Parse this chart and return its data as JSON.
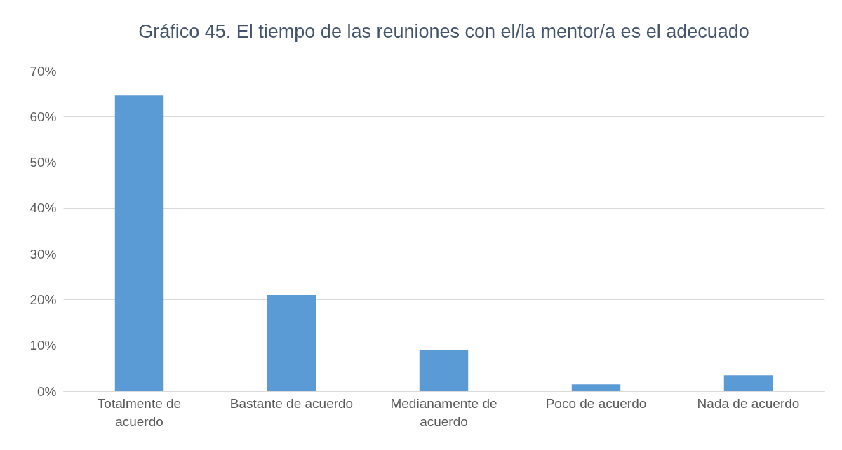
{
  "chart_data": {
    "type": "bar",
    "title": "Gráfico 45. El tiempo de las reuniones con el/la mentor/a es el adecuado",
    "categories": [
      "Totalmente de acuerdo",
      "Bastante de acuerdo",
      "Medianamente de acuerdo",
      "Poco de acuerdo",
      "Nada de acuerdo"
    ],
    "values": [
      64.6,
      21.0,
      9.0,
      1.5,
      3.5
    ],
    "color": "#5b9bd5",
    "ylim": [
      0,
      70
    ],
    "yticks": [
      {
        "value": 0,
        "label": "0%"
      },
      {
        "value": 10,
        "label": "10%"
      },
      {
        "value": 20,
        "label": "20%"
      },
      {
        "value": 30,
        "label": "30%"
      },
      {
        "value": 40,
        "label": "40%"
      },
      {
        "value": 50,
        "label": "50%"
      },
      {
        "value": 60,
        "label": "60%"
      },
      {
        "value": 70,
        "label": "70%"
      }
    ],
    "grid": "y"
  }
}
